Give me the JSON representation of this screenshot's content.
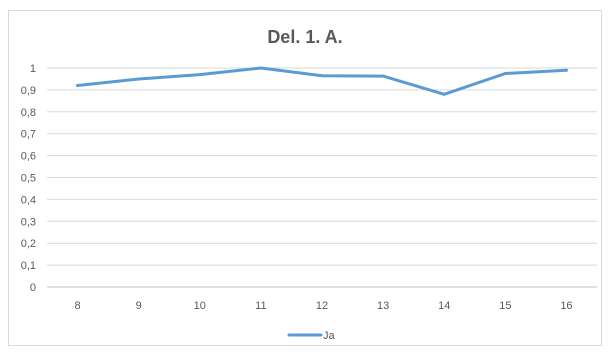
{
  "chart_data": {
    "type": "line",
    "title": "Del. 1. A.",
    "xlabel": "",
    "ylabel": "",
    "categories": [
      "8",
      "9",
      "10",
      "11",
      "12",
      "13",
      "14",
      "15",
      "16"
    ],
    "series": [
      {
        "name": "Ja",
        "values": [
          0.92,
          0.95,
          0.97,
          1.0,
          0.965,
          0.963,
          0.88,
          0.975,
          0.99
        ],
        "color": "#5b9bd5"
      }
    ],
    "ylim": [
      0,
      1
    ],
    "yticks": [
      "0",
      "0,1",
      "0,2",
      "0,3",
      "0,4",
      "0,5",
      "0,6",
      "0,7",
      "0,8",
      "0,9",
      "1"
    ],
    "grid": true,
    "legend": "bottom"
  }
}
